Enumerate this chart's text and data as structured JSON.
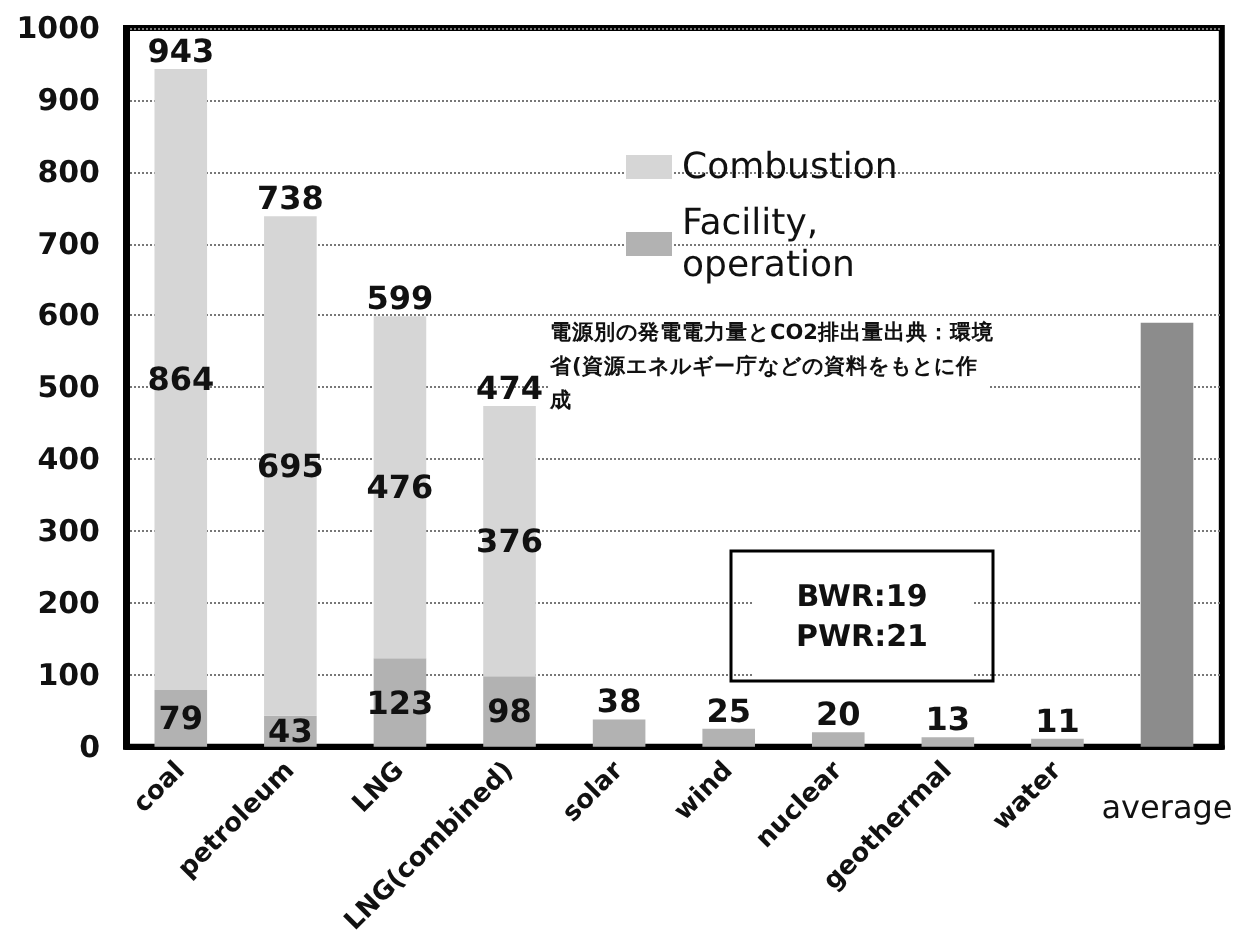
{
  "chart_data": {
    "type": "bar",
    "stacked": true,
    "categories": [
      "coal",
      "petroleum",
      "LNG",
      "LNG(combined)",
      "solar",
      "wind",
      "nuclear",
      "geothermal",
      "water",
      "average"
    ],
    "series": [
      {
        "name": "Facility, operation",
        "color": "#b2b2b2",
        "values": [
          79,
          43,
          123,
          98,
          38,
          25,
          20,
          13,
          11,
          null
        ],
        "value_labels": [
          "79",
          "43",
          "123",
          "98",
          "38",
          "25",
          "20",
          "13",
          "11",
          null
        ]
      },
      {
        "name": "Combustion",
        "color": "#d6d6d6",
        "values": [
          864,
          695,
          476,
          376,
          null,
          null,
          null,
          null,
          null,
          null
        ],
        "value_labels": [
          "864",
          "695",
          "476",
          "376",
          null,
          null,
          null,
          null,
          null,
          null
        ]
      },
      {
        "color": "#8c8c8c",
        "values": [
          null,
          null,
          null,
          null,
          null,
          null,
          null,
          null,
          null,
          590
        ]
      }
    ],
    "totals": [
      "943",
      "738",
      "599",
      "474",
      null,
      null,
      null,
      null,
      null,
      null
    ],
    "ylim": [
      0,
      1000
    ],
    "yticks": [
      0,
      100,
      200,
      300,
      400,
      500,
      600,
      700,
      800,
      900,
      1000
    ],
    "grid": "y",
    "legend": "top right",
    "annotations": [
      "電源別の発電電力量とCO2排出量出典：環境省(資源エネルギー庁などの資料をもとに作成",
      "BWR:19\nPWR:21"
    ]
  }
}
